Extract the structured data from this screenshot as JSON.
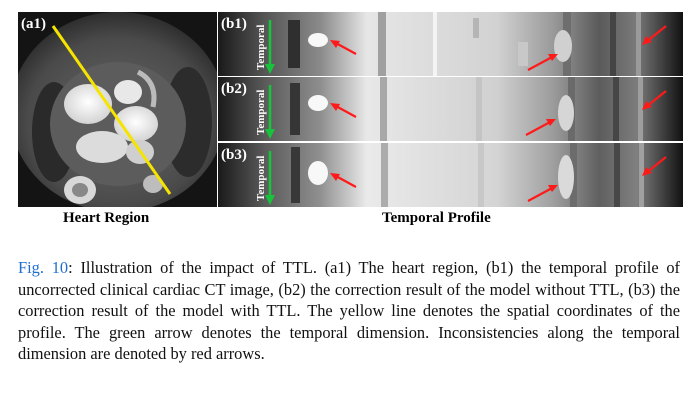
{
  "figure": {
    "panels": {
      "a1": {
        "label": "(a1)"
      },
      "b1": {
        "label": "(b1)",
        "axis_label": "Temporal"
      },
      "b2": {
        "label": "(b2)",
        "axis_label": "Temporal"
      },
      "b3": {
        "label": "(b3)",
        "axis_label": "Temporal"
      }
    },
    "subcaptions": {
      "left": "Heart Region",
      "right": "Temporal Profile"
    },
    "colors": {
      "profile_line": "#f5e400",
      "temporal_arrow": "#18c23c",
      "inconsistency_arrow": "#ff1a1a"
    }
  },
  "caption": {
    "ref": "Fig. 10",
    "text": ": Illustration of the impact of TTL. (a1) The heart region, (b1) the temporal profile of uncorrected clinical cardiac CT image, (b2) the correction result of the model without TTL, (b3) the correction result of the model with TTL. The yellow line denotes the spatial coordinates of the profile. The green arrow denotes the temporal dimension. Inconsistencies along the temporal dimension are denoted by red arrows."
  }
}
